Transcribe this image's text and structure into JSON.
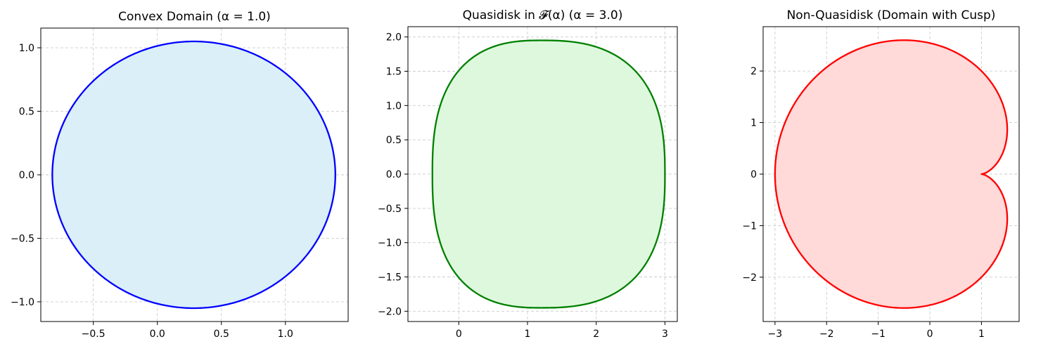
{
  "chart_data": [
    {
      "type": "area",
      "title": "Convex Domain (α = 1.0)",
      "xlim": [
        -0.91,
        1.49
      ],
      "ylim": [
        -1.155,
        1.155
      ],
      "xticks": [
        -0.5,
        0.0,
        0.5,
        1.0
      ],
      "xtick_labels": [
        "−0.5",
        "0.0",
        "0.5",
        "1.0"
      ],
      "yticks": [
        -1.0,
        -0.5,
        0.0,
        0.5,
        1.0
      ],
      "ytick_labels": [
        "−1.0",
        "−0.5",
        "0.0",
        "0.5",
        "1.0"
      ],
      "grid": true,
      "shape": {
        "kind": "ellipse",
        "center": [
          0.285,
          0.0
        ],
        "rx": 1.105,
        "ry": 1.05
      },
      "line_color": "#0000ff",
      "fill_color": "#d8eef7"
    },
    {
      "type": "area",
      "title": "Quasidisk in 𝓕(α) (α = 3.0)",
      "xlim": [
        -0.74,
        3.18
      ],
      "ylim": [
        -2.15,
        2.15
      ],
      "xticks": [
        0,
        1,
        2,
        3
      ],
      "xtick_labels": [
        "0",
        "1",
        "2",
        "3"
      ],
      "yticks": [
        -2.0,
        -1.5,
        -1.0,
        -0.5,
        0.0,
        0.5,
        1.0,
        1.5,
        2.0
      ],
      "ytick_labels": [
        "−2.0",
        "−1.5",
        "−1.0",
        "−0.5",
        "0.0",
        "0.5",
        "1.0",
        "1.5",
        "2.0"
      ],
      "grid": true,
      "shape": {
        "kind": "superellipse",
        "center": [
          1.2,
          0.0
        ],
        "rx": 1.8,
        "ry": 1.95,
        "exponent": 2.6,
        "left_bulge": 0.12
      },
      "line_color": "#008000",
      "fill_color": "#dcf8dc"
    },
    {
      "type": "area",
      "title": "Non-Quasidisk (Domain with Cusp)",
      "xlim": [
        -3.23,
        1.73
      ],
      "ylim": [
        -2.86,
        2.86
      ],
      "xticks": [
        -3,
        -2,
        -1,
        0,
        1
      ],
      "xtick_labels": [
        "−3",
        "−2",
        "−1",
        "0",
        "1"
      ],
      "yticks": [
        -2,
        -1,
        0,
        1,
        2
      ],
      "ytick_labels": [
        "−2",
        "−1",
        "0",
        "1",
        "2"
      ],
      "grid": true,
      "shape": {
        "kind": "cardioid",
        "a": 1.0,
        "cusp": [
          1.0,
          0.0
        ]
      },
      "line_color": "#ff0000",
      "fill_color": "#ffd8d6"
    }
  ]
}
